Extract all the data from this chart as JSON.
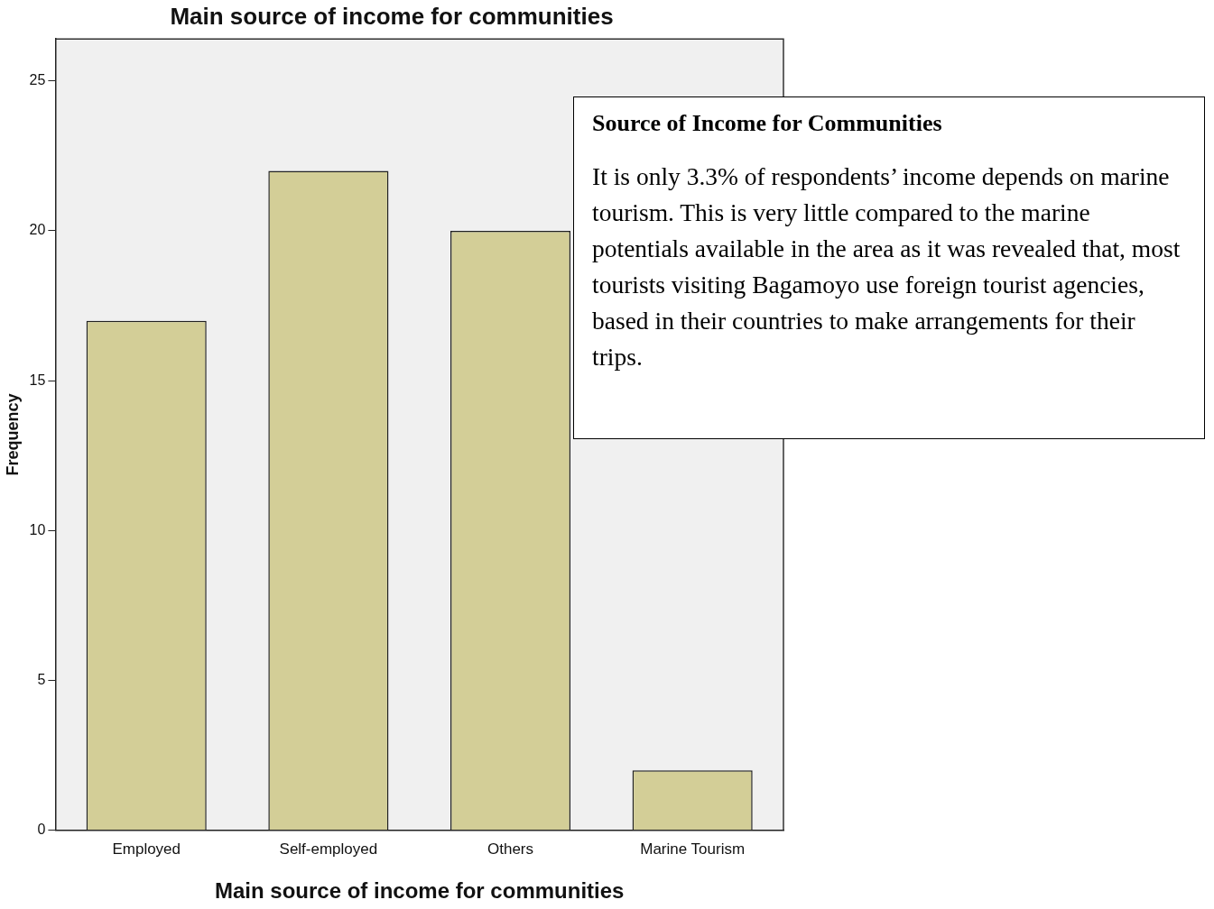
{
  "chart_data": {
    "type": "bar",
    "title": "Main source of income for communities",
    "xlabel": "Main source of income for communities",
    "ylabel": "Frequency",
    "categories": [
      "Employed",
      "Self-employed",
      "Others",
      "Marine Tourism"
    ],
    "values": [
      17,
      22,
      20,
      2
    ],
    "color": "#d3ce97",
    "ylim": [
      0,
      26.4
    ],
    "yticks": [
      0,
      5,
      10,
      15,
      20,
      25
    ],
    "grid": false,
    "legend": false,
    "annotations": [
      "Source of Income for Communities",
      "It is only 3.3% of respondents’ income depends on marine tourism. This is very little compared to the marine potentials available in the area as it was revealed that, most tourists visiting Bagamoyo use foreign tourist agencies, based in their countries to make arrangements for their trips."
    ]
  }
}
